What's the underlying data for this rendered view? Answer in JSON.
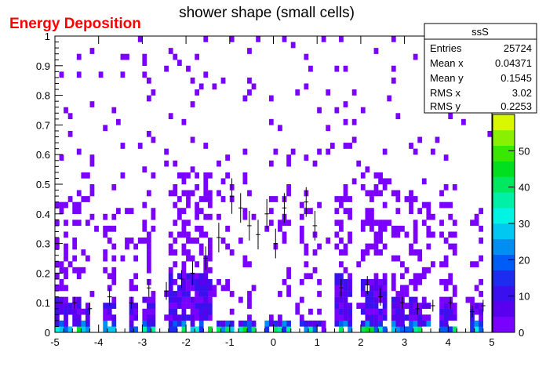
{
  "canvas_label": "Energy Deposition",
  "canvas_label_color": "#ff0000",
  "chart_data": {
    "type": "heatmap",
    "title": "shower shape (small cells)",
    "xlabel": "",
    "ylabel": "",
    "xlim": [
      -5,
      5
    ],
    "ylim": [
      0,
      1
    ],
    "x_ticks": [
      "-5",
      "-4",
      "-3",
      "-2",
      "-1",
      "0",
      "1",
      "2",
      "3",
      "4",
      "5"
    ],
    "y_ticks": [
      "0",
      "0.1",
      "0.2",
      "0.3",
      "0.4",
      "0.5",
      "0.6",
      "0.7",
      "0.8",
      "0.9",
      "1"
    ],
    "z_range": [
      0,
      60
    ],
    "z_ticks": [
      "0",
      "10",
      "20",
      "30",
      "40",
      "50"
    ],
    "palette": [
      "#7a00ff",
      "#5a00f0",
      "#3a10ee",
      "#1e2cf2",
      "#005cf6",
      "#008ef2",
      "#00c8f0",
      "#00f4e4",
      "#00f0a8",
      "#00e860",
      "#00e020",
      "#38e800",
      "#88f000",
      "#d8f800"
    ],
    "grid": false,
    "legend": "top-right stats box",
    "stats": {
      "name": "ssS",
      "rows": [
        {
          "label": "Entries",
          "value": "25724"
        },
        {
          "label": "Mean x",
          "value": "0.04371"
        },
        {
          "label": "Mean y",
          "value": "0.1545"
        },
        {
          "label": "RMS x",
          "value": "3.02"
        },
        {
          "label": "RMS y",
          "value": "0.2253"
        }
      ]
    },
    "bins": {
      "x_bins": 100,
      "y_bins": 50,
      "column_groups": [
        {
          "x": [
            -5.0,
            -4.4
          ],
          "dense_ymax": 0.12,
          "sparse_ymax": 0.45,
          "sparse_frac": 0.35
        },
        {
          "x": [
            -4.4,
            -4.2
          ],
          "dense_ymax": 0.08,
          "sparse_ymax": 0.3,
          "sparse_frac": 0.2
        },
        {
          "x": [
            -3.9,
            -3.6
          ],
          "dense_ymax": 0.1,
          "sparse_ymax": 0.4,
          "sparse_frac": 0.3
        },
        {
          "x": [
            -3.3,
            -3.1
          ],
          "dense_ymax": 0.1,
          "sparse_ymax": 0.35,
          "sparse_frac": 0.25
        },
        {
          "x": [
            -3.0,
            -2.7
          ],
          "dense_ymax": 0.12,
          "sparse_ymax": 0.45,
          "sparse_frac": 0.3
        },
        {
          "x": [
            -2.4,
            -1.4
          ],
          "dense_ymax": 0.2,
          "sparse_ymax": 0.55,
          "sparse_frac": 0.4
        },
        {
          "x": [
            -1.3,
            -0.9
          ],
          "dense_ymax": 0.05,
          "sparse_ymax": 0.55,
          "sparse_frac": 0.25
        },
        {
          "x": [
            -0.8,
            -0.4
          ],
          "dense_ymax": 0.04,
          "sparse_ymax": 0.5,
          "sparse_frac": 0.2
        },
        {
          "x": [
            -0.2,
            0.4
          ],
          "dense_ymax": 0.04,
          "sparse_ymax": 0.5,
          "sparse_frac": 0.2
        },
        {
          "x": [
            0.6,
            1.1
          ],
          "dense_ymax": 0.04,
          "sparse_ymax": 0.5,
          "sparse_frac": 0.2
        },
        {
          "x": [
            1.4,
            1.8
          ],
          "dense_ymax": 0.2,
          "sparse_ymax": 0.5,
          "sparse_frac": 0.35
        },
        {
          "x": [
            2.0,
            2.6
          ],
          "dense_ymax": 0.18,
          "sparse_ymax": 0.55,
          "sparse_frac": 0.4
        },
        {
          "x": [
            2.7,
            3.3
          ],
          "dense_ymax": 0.12,
          "sparse_ymax": 0.5,
          "sparse_frac": 0.35
        },
        {
          "x": [
            3.3,
            3.6
          ],
          "dense_ymax": 0.1,
          "sparse_ymax": 0.45,
          "sparse_frac": 0.3
        },
        {
          "x": [
            3.8,
            4.2
          ],
          "dense_ymax": 0.1,
          "sparse_ymax": 0.45,
          "sparse_frac": 0.3
        },
        {
          "x": [
            4.5,
            4.8
          ],
          "dense_ymax": 0.1,
          "sparse_ymax": 0.4,
          "sparse_frac": 0.25
        }
      ],
      "top_scatter_fraction": 0.06,
      "seed": 7
    },
    "error_points": [
      {
        "x": -4.55,
        "y": 0.1,
        "ex": 0.05,
        "ey": 0.02
      },
      {
        "x": -4.2,
        "y": 0.08,
        "ex": 0.05,
        "ey": 0.02
      },
      {
        "x": -3.75,
        "y": 0.12,
        "ex": 0.05,
        "ey": 0.03
      },
      {
        "x": -3.25,
        "y": 0.1,
        "ex": 0.05,
        "ey": 0.02
      },
      {
        "x": -2.85,
        "y": 0.15,
        "ex": 0.05,
        "ey": 0.03
      },
      {
        "x": -2.45,
        "y": 0.14,
        "ex": 0.05,
        "ey": 0.03
      },
      {
        "x": -2.1,
        "y": 0.18,
        "ex": 0.05,
        "ey": 0.03
      },
      {
        "x": -1.85,
        "y": 0.2,
        "ex": 0.05,
        "ey": 0.04
      },
      {
        "x": -1.55,
        "y": 0.25,
        "ex": 0.05,
        "ey": 0.04
      },
      {
        "x": -1.25,
        "y": 0.32,
        "ex": 0.05,
        "ey": 0.05
      },
      {
        "x": -0.95,
        "y": 0.46,
        "ex": 0.05,
        "ey": 0.06
      },
      {
        "x": -0.75,
        "y": 0.42,
        "ex": 0.05,
        "ey": 0.05
      },
      {
        "x": -0.55,
        "y": 0.36,
        "ex": 0.05,
        "ey": 0.05
      },
      {
        "x": -0.35,
        "y": 0.33,
        "ex": 0.05,
        "ey": 0.05
      },
      {
        "x": -0.15,
        "y": 0.4,
        "ex": 0.05,
        "ey": 0.05
      },
      {
        "x": 0.05,
        "y": 0.3,
        "ex": 0.05,
        "ey": 0.05
      },
      {
        "x": 0.25,
        "y": 0.42,
        "ex": 0.05,
        "ey": 0.05
      },
      {
        "x": 0.75,
        "y": 0.44,
        "ex": 0.05,
        "ey": 0.05
      },
      {
        "x": 0.95,
        "y": 0.36,
        "ex": 0.05,
        "ey": 0.05
      },
      {
        "x": 1.55,
        "y": 0.15,
        "ex": 0.05,
        "ey": 0.03
      },
      {
        "x": 2.15,
        "y": 0.16,
        "ex": 0.05,
        "ey": 0.03
      },
      {
        "x": 2.45,
        "y": 0.12,
        "ex": 0.05,
        "ey": 0.03
      },
      {
        "x": 2.95,
        "y": 0.1,
        "ex": 0.05,
        "ey": 0.02
      },
      {
        "x": 3.3,
        "y": 0.08,
        "ex": 0.05,
        "ey": 0.02
      },
      {
        "x": 3.65,
        "y": 0.09,
        "ex": 0.05,
        "ey": 0.02
      },
      {
        "x": 4.05,
        "y": 0.1,
        "ex": 0.05,
        "ey": 0.02
      },
      {
        "x": 4.55,
        "y": 0.07,
        "ex": 0.05,
        "ey": 0.02
      },
      {
        "x": 4.8,
        "y": 0.09,
        "ex": 0.05,
        "ey": 0.02
      }
    ]
  }
}
